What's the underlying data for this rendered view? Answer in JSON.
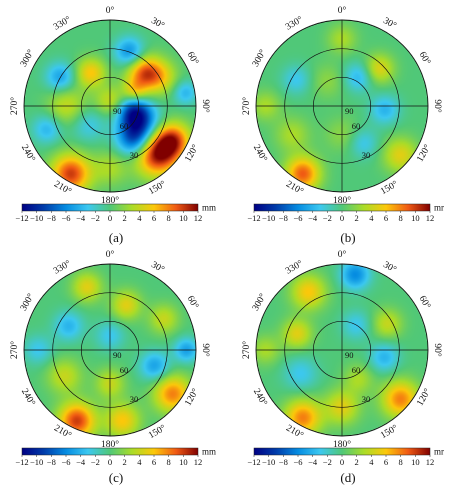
{
  "chart_data": [
    {
      "type": "heatmap",
      "caption": "(a)",
      "colorbar": {
        "unit": "mm",
        "ticks": [
          -12,
          -10,
          -8,
          -6,
          -4,
          -2,
          0,
          2,
          4,
          6,
          8,
          10,
          12
        ],
        "min": -12,
        "max": 12
      },
      "azimuth_ticks": [
        "0°",
        "30°",
        "60°",
        "90°",
        "120°",
        "150°",
        "180°",
        "210°",
        "240°",
        "270°",
        "300°",
        "330°"
      ],
      "elevation_ticks": [
        "90",
        "60",
        "30"
      ],
      "blobs": [
        {
          "az": 135,
          "el": 20,
          "v": 12,
          "s": 0.18
        },
        {
          "az": 118,
          "el": 15,
          "v": 8,
          "s": 0.14
        },
        {
          "az": 210,
          "el": 8,
          "v": 10,
          "s": 0.16
        },
        {
          "az": 45,
          "el": 40,
          "v": 8,
          "s": 0.14
        },
        {
          "az": 60,
          "el": 30,
          "v": 5,
          "s": 0.14
        },
        {
          "az": 120,
          "el": 55,
          "v": -9,
          "s": 0.16
        },
        {
          "az": 145,
          "el": 45,
          "v": -7,
          "s": 0.14
        },
        {
          "az": 100,
          "el": 65,
          "v": -6,
          "s": 0.12
        },
        {
          "az": 20,
          "el": 30,
          "v": -6,
          "s": 0.12
        },
        {
          "az": 300,
          "el": 30,
          "v": -5,
          "s": 0.12
        },
        {
          "az": 330,
          "el": 50,
          "v": 6,
          "s": 0.12
        },
        {
          "az": 270,
          "el": 45,
          "v": 4,
          "s": 0.16
        },
        {
          "az": 250,
          "el": 20,
          "v": -4,
          "s": 0.12
        },
        {
          "az": 80,
          "el": 10,
          "v": -4,
          "s": 0.1
        },
        {
          "az": 180,
          "el": 25,
          "v": 3,
          "s": 0.14
        },
        {
          "az": 0,
          "el": 85,
          "v": 4,
          "s": 0.12
        },
        {
          "az": 230,
          "el": 60,
          "v": -3,
          "s": 0.14
        },
        {
          "az": 60,
          "el": 60,
          "v": 5,
          "s": 0.1
        }
      ]
    },
    {
      "type": "heatmap",
      "caption": "(b)",
      "colorbar": {
        "unit": "mr",
        "ticks": [
          -12,
          -10,
          -8,
          -6,
          -4,
          -2,
          0,
          2,
          4,
          6,
          8,
          10,
          12
        ],
        "min": -12,
        "max": 12
      },
      "azimuth_ticks": [
        "0°",
        "30°",
        "60°",
        "90°",
        "120°",
        "150°",
        "180°",
        "210°",
        "240°",
        "270°",
        "300°",
        "330°"
      ],
      "elevation_ticks": [
        "90",
        "60",
        "30"
      ],
      "blobs": [
        {
          "az": 210,
          "el": 8,
          "v": 9,
          "s": 0.14
        },
        {
          "az": 130,
          "el": 10,
          "v": 5,
          "s": 0.14
        },
        {
          "az": 45,
          "el": 35,
          "v": 5,
          "s": 0.12
        },
        {
          "az": 95,
          "el": 45,
          "v": -4,
          "s": 0.12
        },
        {
          "az": 30,
          "el": 55,
          "v": -4,
          "s": 0.12
        },
        {
          "az": 300,
          "el": 35,
          "v": -3,
          "s": 0.12
        },
        {
          "az": 240,
          "el": 30,
          "v": 3,
          "s": 0.14
        },
        {
          "az": 150,
          "el": 45,
          "v": -3,
          "s": 0.12
        },
        {
          "az": 0,
          "el": 20,
          "v": 3,
          "s": 0.12
        },
        {
          "az": 330,
          "el": 60,
          "v": 2,
          "s": 0.14
        },
        {
          "az": 180,
          "el": 60,
          "v": 2,
          "s": 0.14
        },
        {
          "az": 270,
          "el": 10,
          "v": 3,
          "s": 0.12
        }
      ]
    },
    {
      "type": "heatmap",
      "caption": "(c)",
      "colorbar": {
        "unit": "mm",
        "ticks": [
          -12,
          -10,
          -8,
          -6,
          -4,
          -2,
          0,
          2,
          4,
          6,
          8,
          10,
          12
        ],
        "min": -12,
        "max": 12
      },
      "azimuth_ticks": [
        "0°",
        "30°",
        "60°",
        "90°",
        "120°",
        "150°",
        "180°",
        "210°",
        "240°",
        "270°",
        "300°",
        "330°"
      ],
      "elevation_ticks": [
        "90",
        "60",
        "30"
      ],
      "blobs": [
        {
          "az": 205,
          "el": 8,
          "v": 10,
          "s": 0.15
        },
        {
          "az": 125,
          "el": 10,
          "v": 8,
          "s": 0.15
        },
        {
          "az": 170,
          "el": 15,
          "v": 6,
          "s": 0.14
        },
        {
          "az": 110,
          "el": 40,
          "v": -5,
          "s": 0.12
        },
        {
          "az": 300,
          "el": 40,
          "v": -4,
          "s": 0.12
        },
        {
          "az": 20,
          "el": 40,
          "v": 5,
          "s": 0.12
        },
        {
          "az": 60,
          "el": 25,
          "v": 4,
          "s": 0.12
        },
        {
          "az": 240,
          "el": 35,
          "v": 4,
          "s": 0.14
        },
        {
          "az": 90,
          "el": 10,
          "v": -5,
          "s": 0.1
        },
        {
          "az": 340,
          "el": 20,
          "v": 5,
          "s": 0.12
        },
        {
          "az": 0,
          "el": 75,
          "v": -3,
          "s": 0.12
        },
        {
          "az": 180,
          "el": 55,
          "v": 4,
          "s": 0.12
        },
        {
          "az": 270,
          "el": 15,
          "v": -3,
          "s": 0.12
        }
      ]
    },
    {
      "type": "heatmap",
      "caption": "(d)",
      "colorbar": {
        "unit": "mr",
        "ticks": [
          -12,
          -10,
          -8,
          -6,
          -4,
          -2,
          0,
          2,
          4,
          6,
          8,
          10,
          12
        ],
        "min": -12,
        "max": 12
      },
      "azimuth_ticks": [
        "0°",
        "30°",
        "60°",
        "90°",
        "120°",
        "150°",
        "180°",
        "210°",
        "240°",
        "270°",
        "300°",
        "330°"
      ],
      "elevation_ticks": [
        "90",
        "60",
        "30"
      ],
      "blobs": [
        {
          "az": 210,
          "el": 8,
          "v": 8,
          "s": 0.15
        },
        {
          "az": 130,
          "el": 10,
          "v": 8,
          "s": 0.15
        },
        {
          "az": 10,
          "el": 10,
          "v": -6,
          "s": 0.12
        },
        {
          "az": 330,
          "el": 20,
          "v": 6,
          "s": 0.14
        },
        {
          "az": 290,
          "el": 40,
          "v": 5,
          "s": 0.12
        },
        {
          "az": 60,
          "el": 35,
          "v": 4,
          "s": 0.12
        },
        {
          "az": 100,
          "el": 45,
          "v": -4,
          "s": 0.12
        },
        {
          "az": 180,
          "el": 30,
          "v": 5,
          "s": 0.14
        },
        {
          "az": 240,
          "el": 40,
          "v": -3,
          "s": 0.14
        },
        {
          "az": 30,
          "el": 60,
          "v": -3,
          "s": 0.12
        },
        {
          "az": 270,
          "el": 10,
          "v": 3,
          "s": 0.12
        },
        {
          "az": 150,
          "el": 55,
          "v": 3,
          "s": 0.12
        }
      ]
    }
  ]
}
